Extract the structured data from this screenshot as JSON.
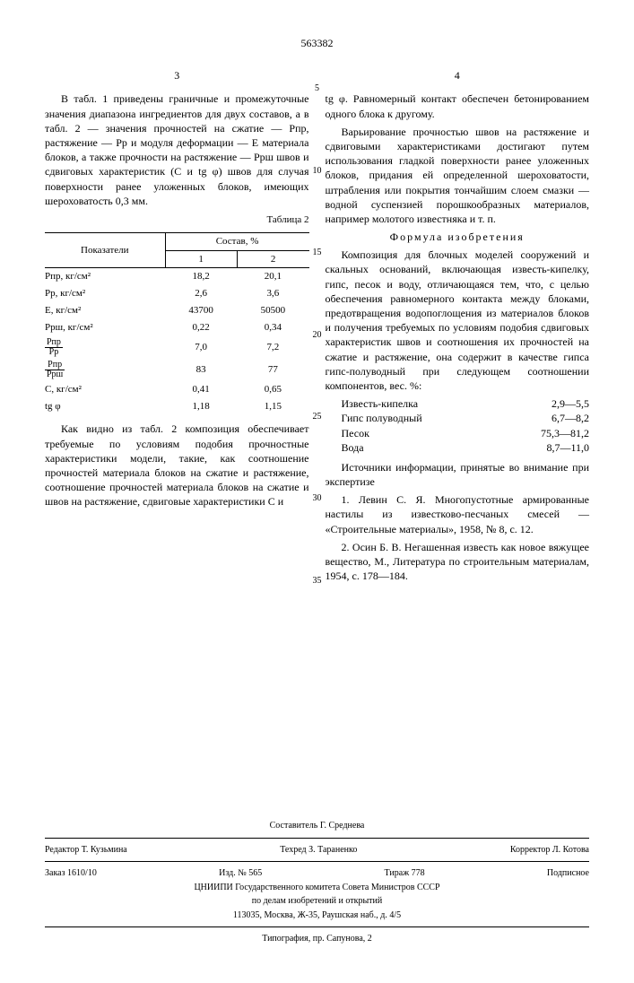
{
  "doc_number": "563382",
  "col_left_num": "3",
  "col_right_num": "4",
  "line_nums": [
    "5",
    "10",
    "15",
    "20",
    "25",
    "30",
    "35"
  ],
  "left": {
    "p1": "В табл. 1 приведены граничные и промежуточные значения диапазона ингредиентов для двух составов, а в табл. 2 — значения прочностей на сжатие — Pпр, растяжение — Pp и модуля деформации — E материала блоков, а также прочности на растяжение — Pрш швов и сдвиговых характеристик (C и tg φ) швов для случая поверхности ранее уложенных блоков, имеющих шероховатость 0,3 мм.",
    "table_caption": "Таблица 2",
    "th_indicator": "Показатели",
    "th_compos": "Состав, %",
    "th_c1": "1",
    "th_c2": "2",
    "rows": [
      {
        "label": "Pпр, кг/см²",
        "c1": "18,2",
        "c2": "20,1"
      },
      {
        "label": "Pp, кг/см²",
        "c1": "2,6",
        "c2": "3,6"
      },
      {
        "label": "E, кг/см²",
        "c1": "43700",
        "c2": "50500"
      },
      {
        "label": "Pрш, кг/см²",
        "c1": "0,22",
        "c2": "0,34"
      },
      {
        "label": "",
        "frac_num": "Pпр",
        "frac_den": "Pp",
        "c1": "7,0",
        "c2": "7,2"
      },
      {
        "label": "",
        "frac_num": "Pпр",
        "frac_den": "Pрш",
        "c1": "83",
        "c2": "77"
      },
      {
        "label": "C, кг/см²",
        "c1": "0,41",
        "c2": "0,65"
      },
      {
        "label": "tg φ",
        "c1": "1,18",
        "c2": "1,15"
      }
    ],
    "p2": "Как видно из табл. 2 композиция обеспечивает требуемые по условиям подобия прочностные характеристики модели, такие, как соотношение прочностей материала блоков на сжатие и растяжение, соотношение прочностей материала блоков на сжатие и швов на растяжение, сдвиговые характеристики C и"
  },
  "right": {
    "p1": "tg φ. Равномерный контакт обеспечен бетонированием одного блока к другому.",
    "p2": "Варьирование прочностью швов на растяжение и сдвиговыми характеристиками достигают путем использования гладкой поверхности ранее уложенных блоков, придания ей определенной шероховатости, штрабления или покрытия тончайшим слоем смазки — водной суспензией порошкообразных материалов, например молотого известняка и т. п.",
    "formula_title": "Формула изобретения",
    "p3": "Композиция для блочных моделей сооружений и скальных оснований, включающая известь-кипелку, гипс, песок и воду, отличающаяся тем, что, с целью обеспечения равномерного контакта между блоками, предотвращения водопоглощения из материалов блоков и получения требуемых по условиям подобия сдвиговых характеристик швов и соотношения их прочностей на сжатие и растяжение, она содержит в качестве гипса гипс-полуводный при следующем соотношении компонентов, вес. %:",
    "ingredients": [
      {
        "name": "Известь-кипелка",
        "val": "2,9—5,5"
      },
      {
        "name": "Гипс полуводный",
        "val": "6,7—8,2"
      },
      {
        "name": "Песок",
        "val": "75,3—81,2"
      },
      {
        "name": "Вода",
        "val": "8,7—11,0"
      }
    ],
    "sources_title": "Источники информации, принятые во внимание при экспертизе",
    "src1": "1. Левин С. Я. Многопустотные армированные настилы из известково-песчаных смесей — «Строительные материалы», 1958, № 8, с. 12.",
    "src2": "2. Осин Б. В. Негашенная известь как новое вяжущее вещество, М., Литература по строительным материалам, 1954, с. 178—184."
  },
  "footer": {
    "composer": "Составитель Г. Среднева",
    "editor": "Редактор Т. Кузьмина",
    "techred": "Техред З. Тараненко",
    "corrector": "Корректор Л. Котова",
    "zakaz": "Заказ 1610/10",
    "izd": "Изд. № 565",
    "tirazh": "Тираж 778",
    "sign": "Подписное",
    "org1": "ЦНИИПИ Государственного комитета Совета Министров СССР",
    "org2": "по делам изобретений и открытий",
    "addr": "113035, Москва, Ж-35, Раушская наб., д. 4/5",
    "printer": "Типография, пр. Сапунова, 2"
  }
}
